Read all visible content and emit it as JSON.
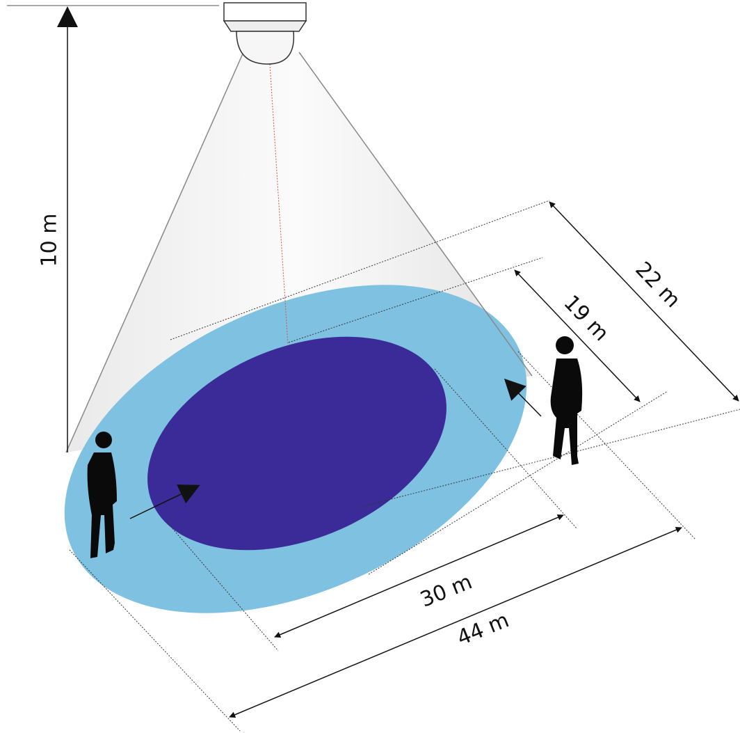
{
  "dimensions": [
    {
      "label": "10 m"
    },
    {
      "label": "22 m"
    },
    {
      "label": "19 m"
    },
    {
      "label": "30 m"
    },
    {
      "label": "44 m"
    }
  ]
}
